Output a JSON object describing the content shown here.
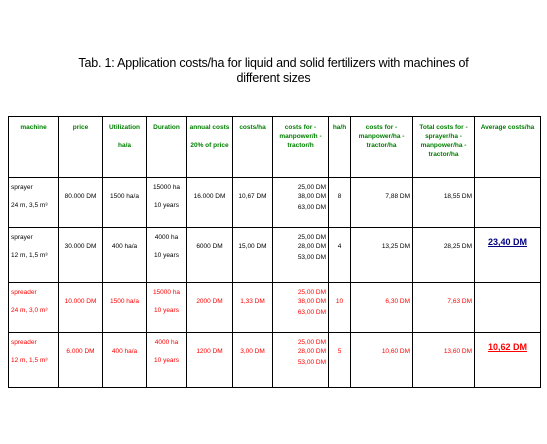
{
  "title_line1": "Tab. 1: Application costs/ha for liquid and solid fertilizers with machines of",
  "title_line2": "different sizes",
  "headers": {
    "machine": "machine",
    "price": "price",
    "utilization": "Utilization",
    "utilization_unit": "ha/a",
    "duration": "Duration",
    "annual_costs": "annual costs",
    "annual_costs_note": "20% of price",
    "costs_ha": "costs/ha",
    "costs_manpower": "costs for -manpower/h -tractor/h",
    "ha_h": "ha/h",
    "costs_manpower_ha": "costs for -manpower/ha -tractor/ha",
    "total_costs": "Total costs for -sprayer/ha -manpower/ha -tractor/ha",
    "average": "Average costs/ha"
  },
  "rows": [
    {
      "machine": "sprayer",
      "size": "24 m, 3,5 m³",
      "price": "80.000 DM",
      "utilization": "1500 ha/a",
      "duration_area": "15000 ha",
      "duration_years": "10 years",
      "annual": "16.000 DM",
      "costs_ha": "10,67 DM",
      "rates": [
        "25,00 DM",
        "38,00 DM",
        "63,00 DM"
      ],
      "ha_h": "8",
      "manpower_ha": "7,88 DM",
      "total": "18,55 DM",
      "color": "black"
    },
    {
      "machine": "sprayer",
      "size": "12 m, 1,5 m³",
      "price": "30.000 DM",
      "utilization": "400 ha/a",
      "duration_area": "4000 ha",
      "duration_years": "10 years",
      "annual": "6000 DM",
      "costs_ha": "15,00 DM",
      "rates": [
        "25,00 DM",
        "28,00 DM",
        "53,00 DM"
      ],
      "ha_h": "4",
      "manpower_ha": "13,25 DM",
      "total": "28,25 DM",
      "color": "black"
    },
    {
      "machine": "spreader",
      "size": "24 m, 3,0 m³",
      "price": "10.000 DM",
      "utilization": "1500 ha/a",
      "duration_area": "15000 ha",
      "duration_years": "10 years",
      "annual": "2000 DM",
      "costs_ha": "1,33 DM",
      "rates": [
        "25,00 DM",
        "38,00 DM",
        "63,00 DM"
      ],
      "ha_h": "10",
      "manpower_ha": "6,30 DM",
      "total": "7,63 DM",
      "color": "red"
    },
    {
      "machine": "spreader",
      "size": "12 m, 1,5 m³",
      "price": "6.000 DM",
      "utilization": "400 ha/a",
      "duration_area": "4000 ha",
      "duration_years": "10 years",
      "annual": "1200 DM",
      "costs_ha": "3,00 DM",
      "rates": [
        "25,00 DM",
        "28,00 DM",
        "53,00 DM"
      ],
      "ha_h": "5",
      "manpower_ha": "10,60 DM",
      "total": "13,60 DM",
      "color": "red"
    }
  ],
  "averages": {
    "sprayer": "23,40 DM",
    "spreader": "10,62 DM"
  },
  "colors": {
    "header": "#008000",
    "sprayer_rows": "#000000",
    "spreader_rows": "#ff0000",
    "avg_sprayer": "#000080",
    "avg_spreader": "#ff0000"
  }
}
